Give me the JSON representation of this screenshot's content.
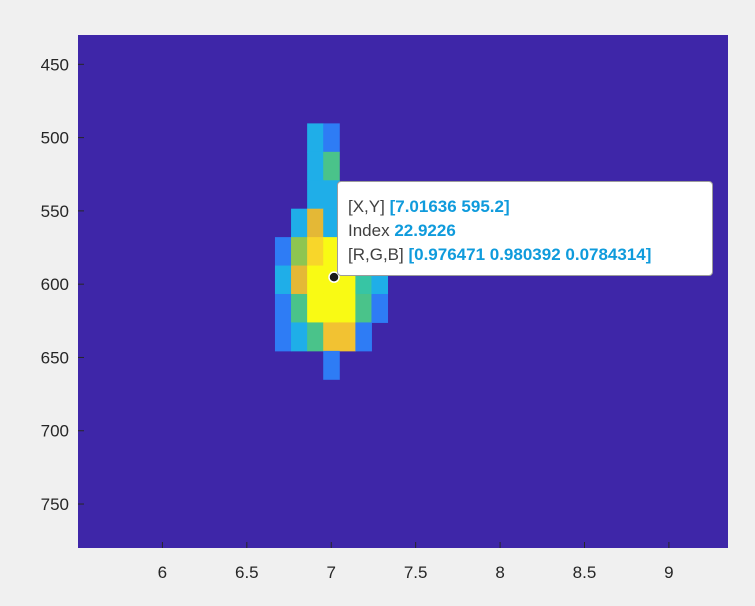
{
  "chart_data": {
    "type": "heatmap",
    "title": "",
    "xlabel": "",
    "ylabel": "",
    "xlim": [
      5.5,
      9.35
    ],
    "ylim": [
      430,
      780
    ],
    "y_direction": "reverse",
    "x_ticks": [
      "6",
      "6.5",
      "7",
      "7.5",
      "8",
      "8.5",
      "9"
    ],
    "y_ticks": [
      "450",
      "500",
      "550",
      "600",
      "650",
      "700",
      "750"
    ],
    "colormap": "parula",
    "background_color": "#3e26a8",
    "cell_width": 0.0952,
    "cell_height": 19.4,
    "cells": [
      {
        "x": 6.9048,
        "y": 500,
        "color": "#1faee8"
      },
      {
        "x": 7.0,
        "y": 500,
        "color": "#2e7cf5"
      },
      {
        "x": 6.9048,
        "y": 519.4,
        "color": "#1faee8"
      },
      {
        "x": 7.0,
        "y": 519.4,
        "color": "#4ac38a"
      },
      {
        "x": 6.9048,
        "y": 538.8,
        "color": "#1faee8"
      },
      {
        "x": 7.0,
        "y": 538.8,
        "color": "#1faee8"
      },
      {
        "x": 6.8095,
        "y": 558.2,
        "color": "#1faee8"
      },
      {
        "x": 6.9048,
        "y": 558.2,
        "color": "#e4b836"
      },
      {
        "x": 7.0,
        "y": 558.2,
        "color": "#1faee8"
      },
      {
        "x": 6.7143,
        "y": 577.6,
        "color": "#2e7cf5"
      },
      {
        "x": 6.8095,
        "y": 577.6,
        "color": "#8ec551"
      },
      {
        "x": 6.9048,
        "y": 577.6,
        "color": "#f8d62a"
      },
      {
        "x": 7.0,
        "y": 577.6,
        "color": "#f9fa14"
      },
      {
        "x": 6.7143,
        "y": 597.0,
        "color": "#1faee8"
      },
      {
        "x": 6.8095,
        "y": 597.0,
        "color": "#e4b836"
      },
      {
        "x": 6.9048,
        "y": 597.0,
        "color": "#f9fa14"
      },
      {
        "x": 7.0,
        "y": 597.0,
        "color": "#f9fa14"
      },
      {
        "x": 7.0952,
        "y": 597.0,
        "color": "#f9fa14"
      },
      {
        "x": 7.1905,
        "y": 597.0,
        "color": "#37c5a4"
      },
      {
        "x": 7.2857,
        "y": 597.0,
        "color": "#1faee8"
      },
      {
        "x": 6.7143,
        "y": 616.4,
        "color": "#2e7cf5"
      },
      {
        "x": 6.8095,
        "y": 616.4,
        "color": "#4ac38a"
      },
      {
        "x": 6.9048,
        "y": 616.4,
        "color": "#f9fa14"
      },
      {
        "x": 7.0,
        "y": 616.4,
        "color": "#f9fa14"
      },
      {
        "x": 7.0952,
        "y": 616.4,
        "color": "#f9fa14"
      },
      {
        "x": 7.1905,
        "y": 616.4,
        "color": "#4ac38a"
      },
      {
        "x": 7.2857,
        "y": 616.4,
        "color": "#2e7cf5"
      },
      {
        "x": 6.7143,
        "y": 635.8,
        "color": "#2e7cf5"
      },
      {
        "x": 6.8095,
        "y": 635.8,
        "color": "#1faee8"
      },
      {
        "x": 6.9048,
        "y": 635.8,
        "color": "#4ac38a"
      },
      {
        "x": 7.0,
        "y": 635.8,
        "color": "#f2c232"
      },
      {
        "x": 7.0952,
        "y": 635.8,
        "color": "#f2c232"
      },
      {
        "x": 7.1905,
        "y": 635.8,
        "color": "#2e7cf5"
      },
      {
        "x": 7.0,
        "y": 655.2,
        "color": "#2e7cf5"
      }
    ],
    "datatip": {
      "x": 7.01636,
      "y": 595.2,
      "xy_label": "[X,Y]",
      "xy_value": "[7.01636 595.2]",
      "index_label": "Index",
      "index_value": "22.9226",
      "rgb_label": "[R,G,B]",
      "rgb_value": "[0.976471 0.980392 0.0784314]"
    }
  }
}
